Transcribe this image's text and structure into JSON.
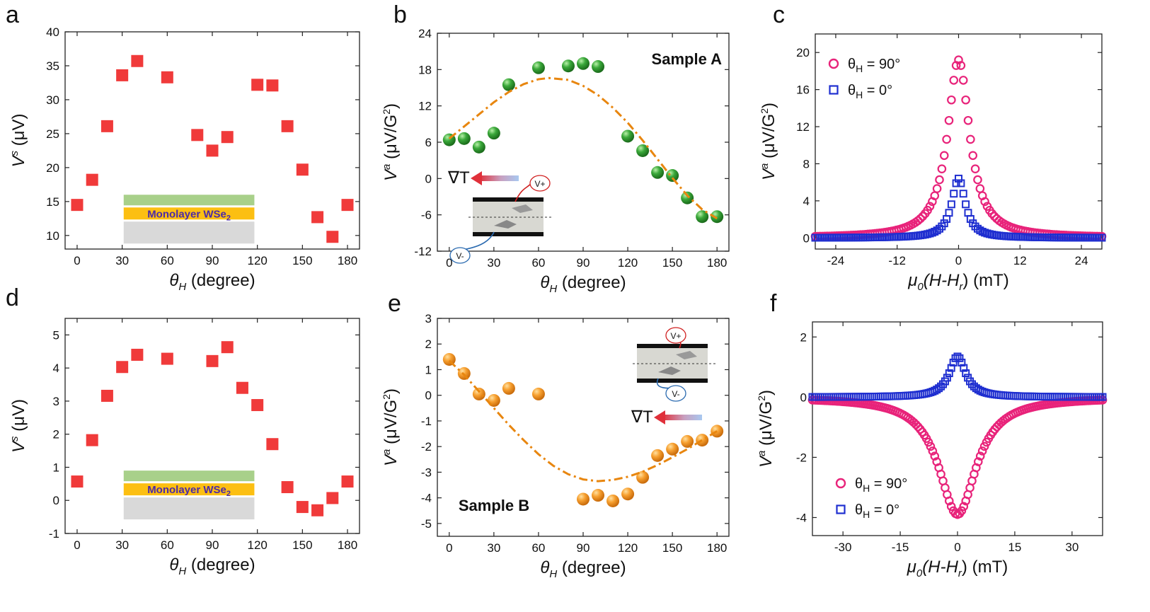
{
  "chart_data": [
    {
      "panel": "a",
      "type": "scatter",
      "xlabel_symbol": "θ",
      "xlabel_sub": "H",
      "xlabel_unit": " (degree)",
      "ylabel_symbol": "V",
      "ylabel_sup": "s",
      "ylabel_unit": " (μV)",
      "xlim": [
        -8,
        188
      ],
      "ylim": [
        8,
        40
      ],
      "xticks": [
        0,
        30,
        60,
        90,
        120,
        150,
        180
      ],
      "yticks": [
        10,
        15,
        20,
        25,
        30,
        35,
        40
      ],
      "series": [
        {
          "name": "Vs",
          "marker": "square",
          "color": "#f03a3a",
          "x": [
            0,
            10,
            20,
            30,
            40,
            60,
            80,
            90,
            100,
            120,
            130,
            140,
            150,
            160,
            170,
            180
          ],
          "y": [
            14.5,
            18.2,
            26.1,
            33.6,
            35.7,
            33.3,
            24.8,
            22.5,
            24.5,
            32.2,
            32.1,
            26.1,
            19.7,
            12.7,
            9.8,
            14.5
          ]
        }
      ],
      "inset_label": "Monolayer WSe",
      "inset_label_sub": "2"
    },
    {
      "panel": "b",
      "type": "scatter",
      "xlabel_symbol": "θ",
      "xlabel_sub": "H",
      "xlabel_unit": " (degree)",
      "ylabel_symbol": "V",
      "ylabel_sup": "a",
      "ylabel_unit": " (μV/G",
      "ylabel_unit_sup": "2",
      "ylabel_unit_end": ")",
      "xlim": [
        -8,
        188
      ],
      "ylim": [
        -12,
        24
      ],
      "xticks": [
        0,
        30,
        60,
        90,
        120,
        150,
        180
      ],
      "yticks": [
        -12,
        -6,
        0,
        6,
        12,
        18,
        24
      ],
      "series": [
        {
          "name": "Va",
          "marker": "sphere",
          "color": "#2e9c2e",
          "x": [
            0,
            10,
            20,
            30,
            40,
            60,
            80,
            90,
            100,
            120,
            130,
            140,
            150,
            160,
            170,
            180
          ],
          "y": [
            6.4,
            6.6,
            5.2,
            7.5,
            15.5,
            18.3,
            18.6,
            19.0,
            18.5,
            7.0,
            4.6,
            1.0,
            0.5,
            -3.2,
            -6.3,
            -6.3
          ]
        },
        {
          "name": "fit",
          "marker": "line",
          "color": "#e8860f",
          "x": [
            0,
            10,
            20,
            30,
            40,
            50,
            60,
            67,
            80,
            90,
            100,
            110,
            120,
            130,
            140,
            150,
            160,
            170,
            180
          ],
          "y": [
            6.6,
            8.6,
            10.6,
            12.6,
            14.3,
            15.6,
            16.4,
            16.6,
            16.3,
            15.3,
            13.8,
            11.7,
            9.2,
            6.3,
            3.2,
            0.1,
            -2.8,
            -5.1,
            -6.6
          ]
        }
      ],
      "annotation": "Sample A",
      "inset": {
        "gradient_label": "∇T",
        "vplus": "V+",
        "vminus": "V-"
      }
    },
    {
      "panel": "c",
      "type": "scatter",
      "xlabel_symbol": "μ",
      "xlabel_sub": "0",
      "xlabel_unit": "(H-H",
      "xlabel_unit_sub": "r",
      "xlabel_unit_end": ") (mT)",
      "ylabel_symbol": "V",
      "ylabel_sup": "a",
      "ylabel_unit": " (μV/G",
      "ylabel_unit_sup": "2",
      "ylabel_unit_end": ")",
      "xlim": [
        -28,
        28
      ],
      "ylim": [
        -1.2,
        22
      ],
      "xticks": [
        -24,
        -12,
        0,
        12,
        24
      ],
      "yticks": [
        0,
        4,
        8,
        12,
        16,
        20
      ],
      "series": [
        {
          "name": "θH = 90°",
          "marker": "circle",
          "color": "#e8237a",
          "amplitude": 19.2,
          "halfwidth": 2.6,
          "offset": 0
        },
        {
          "name": "θH = 0°",
          "marker": "square",
          "color": "#1f2fd0",
          "amplitude": 6.4,
          "halfwidth": 1.6,
          "offset": 0
        }
      ],
      "legend": [
        {
          "symbol": "θ",
          "sub": "H",
          "rest": " = 90°"
        },
        {
          "symbol": "θ",
          "sub": "H",
          "rest": " = 0°"
        }
      ]
    },
    {
      "panel": "d",
      "type": "scatter",
      "xlabel_symbol": "θ",
      "xlabel_sub": "H",
      "xlabel_unit": " (degree)",
      "ylabel_symbol": "V",
      "ylabel_sup": "s",
      "ylabel_unit": " (μV)",
      "xlim": [
        -8,
        188
      ],
      "ylim": [
        -1,
        5.5
      ],
      "xticks": [
        0,
        30,
        60,
        90,
        120,
        150,
        180
      ],
      "yticks": [
        -1,
        0,
        1,
        2,
        3,
        4,
        5
      ],
      "series": [
        {
          "name": "Vs",
          "marker": "square",
          "color": "#f03a3a",
          "x": [
            0,
            10,
            20,
            30,
            40,
            60,
            90,
            100,
            110,
            120,
            130,
            140,
            150,
            160,
            170,
            180
          ],
          "y": [
            0.57,
            1.82,
            3.16,
            4.03,
            4.4,
            4.28,
            4.21,
            4.63,
            3.4,
            2.88,
            1.7,
            0.4,
            -0.2,
            -0.3,
            0.07,
            0.57
          ]
        }
      ],
      "inset_label": "Monolayer WSe",
      "inset_label_sub": "2"
    },
    {
      "panel": "e",
      "type": "scatter",
      "xlabel_symbol": "θ",
      "xlabel_sub": "H",
      "xlabel_unit": " (degree)",
      "ylabel_symbol": "V",
      "ylabel_sup": "a",
      "ylabel_unit": " (μV/G",
      "ylabel_unit_sup": "2",
      "ylabel_unit_end": ")",
      "xlim": [
        -8,
        188
      ],
      "ylim": [
        -5.5,
        3
      ],
      "xticks": [
        0,
        30,
        60,
        90,
        120,
        150,
        180
      ],
      "yticks": [
        -5,
        -4,
        -3,
        -2,
        -1,
        0,
        1,
        2,
        3
      ],
      "series": [
        {
          "name": "Va",
          "marker": "sphere",
          "color": "#f5941d",
          "x": [
            0,
            10,
            20,
            30,
            40,
            60,
            90,
            100,
            110,
            120,
            130,
            140,
            150,
            160,
            170,
            180
          ],
          "y": [
            1.4,
            0.85,
            0.05,
            -0.2,
            0.27,
            0.05,
            -4.05,
            -3.9,
            -4.12,
            -3.85,
            -3.2,
            -2.35,
            -2.1,
            -1.8,
            -1.75,
            -1.4
          ]
        },
        {
          "name": "fit",
          "marker": "line",
          "color": "#e8860f",
          "x": [
            0,
            10,
            20,
            30,
            40,
            50,
            60,
            70,
            80,
            90,
            100,
            110,
            120,
            130,
            140,
            150,
            160,
            170,
            180
          ],
          "y": [
            1.35,
            0.8,
            0.15,
            -0.5,
            -1.15,
            -1.75,
            -2.3,
            -2.75,
            -3.08,
            -3.28,
            -3.35,
            -3.3,
            -3.18,
            -2.98,
            -2.72,
            -2.42,
            -2.1,
            -1.75,
            -1.4
          ]
        }
      ],
      "annotation": "Sample B",
      "inset": {
        "gradient_label": "∇T",
        "vplus": "V+",
        "vminus": "V-"
      }
    },
    {
      "panel": "f",
      "type": "scatter",
      "xlabel_symbol": "μ",
      "xlabel_sub": "0",
      "xlabel_unit": "(H-H",
      "xlabel_unit_sub": "r",
      "xlabel_unit_end": ") (mT)",
      "ylabel_symbol": "V",
      "ylabel_sup": "a",
      "ylabel_unit": " (μV/G",
      "ylabel_unit_sup": "2",
      "ylabel_unit_end": ")",
      "xlim": [
        -38,
        38
      ],
      "ylim": [
        -4.6,
        2.5
      ],
      "xticks": [
        -30,
        -15,
        0,
        15,
        30
      ],
      "yticks": [
        -4,
        -2,
        0,
        2
      ],
      "series": [
        {
          "name": "θH = 90°",
          "marker": "circle",
          "color": "#e8237a",
          "amplitude": -3.9,
          "halfwidth": 6.0,
          "offset": 0
        },
        {
          "name": "θH = 0°",
          "marker": "square",
          "color": "#1f2fd0",
          "amplitude": 1.35,
          "halfwidth": 2.6,
          "offset": 0
        }
      ],
      "legend": [
        {
          "symbol": "θ",
          "sub": "H",
          "rest": " = 90°"
        },
        {
          "symbol": "θ",
          "sub": "H",
          "rest": " = 0°"
        }
      ]
    }
  ]
}
